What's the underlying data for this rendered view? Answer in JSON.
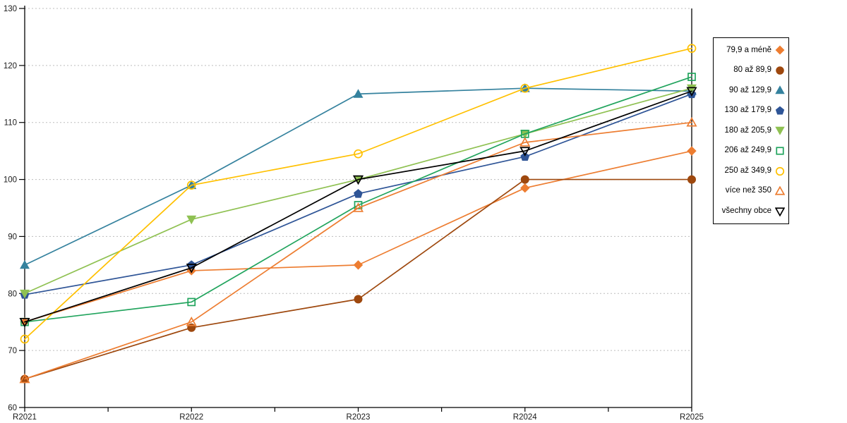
{
  "chart_data": {
    "type": "line",
    "title": "",
    "xlabel": "",
    "ylabel": "",
    "x_categories": [
      "R2021",
      "R2022",
      "R2023",
      "R2024",
      "R2025"
    ],
    "ylim": [
      60,
      130
    ],
    "y_ticks": [
      60,
      70,
      80,
      90,
      100,
      110,
      120,
      130
    ],
    "grid": "horizontal-dashed",
    "legend_position": "right",
    "axis_color": "#000000",
    "gridline_color": "#bdbdbd",
    "tick_label_color": "#1a1a1a",
    "series": [
      {
        "name": "79,9 a méně",
        "color": "#ED7D31",
        "marker": "diamond",
        "fill": "filled",
        "values": [
          75,
          84,
          85,
          98.5,
          105
        ]
      },
      {
        "name": "80 až 89,9",
        "color": "#9E480E",
        "marker": "circle",
        "fill": "filled",
        "values": [
          65,
          74,
          79,
          100,
          100
        ]
      },
      {
        "name": "90 až 129,9",
        "color": "#35829E",
        "marker": "triangle-up",
        "fill": "filled",
        "values": [
          85,
          99,
          115,
          116,
          115.5
        ]
      },
      {
        "name": "130 až 179,9",
        "color": "#2F5597",
        "marker": "pentagon",
        "fill": "filled",
        "values": [
          79.8,
          85,
          97.5,
          104,
          115
        ]
      },
      {
        "name": "180 až 205,9",
        "color": "#8FC152",
        "marker": "triangle-down",
        "fill": "filled",
        "values": [
          80,
          93,
          100,
          108,
          116
        ]
      },
      {
        "name": "206 až 249,9",
        "color": "#21A45D",
        "marker": "square",
        "fill": "open",
        "values": [
          75,
          78.5,
          95.5,
          108,
          118
        ]
      },
      {
        "name": "250 až 349,9",
        "color": "#FFC000",
        "marker": "circle",
        "fill": "open",
        "values": [
          72,
          99,
          104.5,
          116,
          123
        ]
      },
      {
        "name": "více než 350",
        "color": "#ED7D31",
        "marker": "triangle-up",
        "fill": "open",
        "values": [
          65,
          75,
          95,
          106.5,
          110
        ]
      },
      {
        "name": "všechny obce",
        "color": "#000000",
        "marker": "triangle-down",
        "fill": "open",
        "values": [
          75,
          84.5,
          100,
          105,
          115.5
        ]
      }
    ]
  }
}
